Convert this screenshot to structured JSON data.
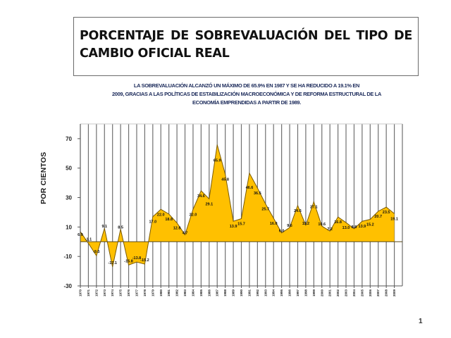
{
  "slide": {
    "title": "PORCENTAJE DE SOBREVALUACIÓN DEL TIPO DE CAMBIO OFICIAL REAL",
    "subtitle_lines": [
      "LA SOBREVALUACIÓN ALCANZÓ UN MÁXIMO DE 65.9% EN 1987 Y SE HA REDUCIDO A 19.1% EN",
      "2009, GRACIAS A LAS POLÍTICAS DE ESTABILIZACIÓN MACROECONÓMICA Y DE REFORMA ESTRUCTURAL DE LA",
      "ECONOMÍA EMPRENDIDAS A PARTIR DE 1989."
    ],
    "page_number": "1"
  },
  "colors": {
    "fill": "#FFC000",
    "outline": "#7a5a00",
    "gridline": "#707070",
    "subtitle_text": "#1b2a5a"
  },
  "chart_data": {
    "type": "area",
    "title": "PORCENTAJE DE SOBREVALUACIÓN DEL TIPO DE CAMBIO OFICIAL REAL",
    "xlabel": "",
    "ylabel": "POR CIENTOS",
    "ylim": [
      -30,
      80
    ],
    "yticks": [
      70,
      50,
      30,
      10,
      -10,
      -30
    ],
    "grid": "vertical",
    "legend": "none",
    "categories": [
      "1970",
      "1971",
      "1972",
      "1973",
      "1974",
      "1975",
      "1976",
      "1977",
      "1978",
      "1979",
      "1980",
      "1981",
      "1982",
      "1983",
      "1984",
      "1985",
      "1986",
      "1987",
      "1988",
      "1989",
      "1990",
      "1991",
      "1992",
      "1993",
      "1994",
      "1995",
      "1996",
      "1997",
      "1998",
      "1999",
      "2000",
      "2001",
      "2002",
      "2003",
      "2004",
      "2005",
      "2006",
      "2007",
      "2008",
      "2009"
    ],
    "values": [
      6.9,
      -1.1,
      -9.5,
      9.1,
      -17.1,
      8.5,
      -15.8,
      -13.8,
      -15.2,
      17.0,
      22.0,
      18.8,
      12.8,
      4.7,
      22.0,
      34.6,
      29.1,
      65.9,
      45.8,
      13.9,
      15.7,
      46.6,
      36.5,
      25.7,
      16.0,
      6.0,
      9.6,
      24.6,
      11.2,
      27.1,
      10.6,
      7.2,
      16.8,
      13.0,
      8.8,
      13.9,
      15.2,
      20.7,
      23.5,
      19.1
    ],
    "data_labels": [
      "6.9",
      "-1.1",
      "-9.5",
      "9.1",
      "-17.1",
      "8.5",
      "-15.8",
      "-13.8",
      "-15.2",
      "17.0",
      "22.0",
      "18.8",
      "12.8",
      "4.7",
      "22.0",
      "34.6",
      "29.1",
      "65.9",
      "45.8",
      "13.9",
      "15.7",
      "46.6",
      "36.5",
      "25.7",
      "16.0",
      "6.0",
      "9.6",
      "24.6",
      "11.2",
      "27.1",
      "10.6",
      "7.2",
      "16.8",
      "13.0",
      "8.8",
      "13.9",
      "15.2",
      "20.7",
      "23.5",
      "19.1"
    ]
  }
}
